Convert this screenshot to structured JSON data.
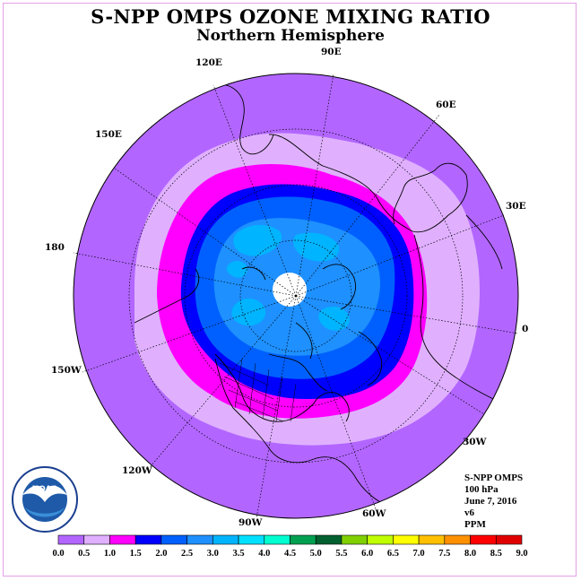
{
  "header": {
    "title": "S-NPP OMPS OZONE MIXING RATIO",
    "subtitle": "Northern Hemisphere"
  },
  "longitude_labels": {
    "l90e": "90E",
    "l120e": "120E",
    "l60e": "60E",
    "l150e": "150E",
    "l30e": "30E",
    "l180": "180",
    "l0": "0",
    "l150w": "150W",
    "l30w": "30W",
    "l120w": "120W",
    "l60w": "60W",
    "l90w": "90W"
  },
  "info": {
    "instrument": "S-NPP OMPS",
    "level": "100 hPa",
    "date": "June 7, 2016",
    "version": "v6",
    "units": "PPM"
  },
  "colorbar": {
    "ticks": [
      "0.0",
      "0.5",
      "1.0",
      "1.5",
      "2.0",
      "2.5",
      "3.0",
      "3.5",
      "4.0",
      "4.5",
      "5.0",
      "5.5",
      "6.0",
      "6.5",
      "7.0",
      "7.5",
      "8.0",
      "8.5",
      "9.0"
    ],
    "colors": [
      "#b266ff",
      "#e0b0ff",
      "#ff00ff",
      "#0000ff",
      "#0060ff",
      "#1e90ff",
      "#00b4ff",
      "#00e0ff",
      "#00ffd0",
      "#00a050",
      "#006030",
      "#80d000",
      "#c0ff00",
      "#ffff00",
      "#ffc000",
      "#ff9000",
      "#ff0000",
      "#e00000",
      "#8b4513"
    ]
  },
  "map_fields": {
    "outer_ring_color": "#b266ff",
    "level_05_color": "#e0b0ff",
    "level_10_color": "#ff00ff",
    "level_15_color": "#0000ff",
    "level_20_color": "#0060ff",
    "level_25_color": "#1e90ff",
    "level_30_color": "#00b4ff",
    "pole_fill": "#ffffff"
  },
  "logo": {
    "text": "NOAA",
    "ring_text": "NATIONAL OCEANIC AND ATMOSPHERIC ADMINISTRATION · U.S. DEPARTMENT OF COMMERCE"
  }
}
